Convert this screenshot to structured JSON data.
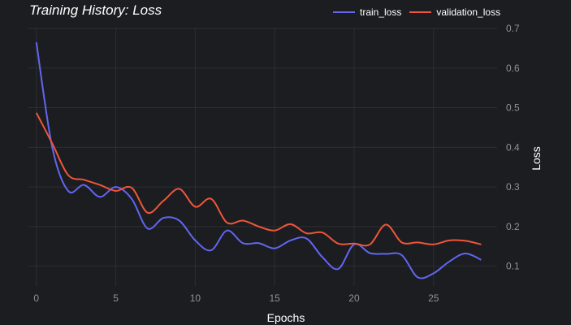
{
  "chart_data": {
    "type": "line",
    "title": "Training History: Loss",
    "xlabel": "Epochs",
    "ylabel": "Loss",
    "xlim": [
      -0.5,
      29
    ],
    "ylim": [
      0.05,
      0.7
    ],
    "xticks": [
      0,
      5,
      10,
      15,
      20,
      25
    ],
    "yticks": [
      0.1,
      0.2,
      0.3,
      0.4,
      0.5,
      0.6,
      0.7
    ],
    "y_axis_side": "right",
    "grid": true,
    "legend_position": "top-right",
    "x": [
      0,
      1,
      2,
      3,
      4,
      5,
      6,
      7,
      8,
      9,
      10,
      11,
      12,
      13,
      14,
      15,
      16,
      17,
      18,
      19,
      20,
      21,
      22,
      23,
      24,
      25,
      26,
      27,
      28
    ],
    "series": [
      {
        "name": "train_loss",
        "color": "#6366f1",
        "values": [
          0.665,
          0.4,
          0.29,
          0.305,
          0.275,
          0.3,
          0.27,
          0.195,
          0.222,
          0.215,
          0.165,
          0.14,
          0.19,
          0.158,
          0.158,
          0.145,
          0.165,
          0.17,
          0.123,
          0.093,
          0.155,
          0.133,
          0.131,
          0.128,
          0.072,
          0.082,
          0.112,
          0.132,
          0.116
        ]
      },
      {
        "name": "validation_loss",
        "color": "#ef553b",
        "values": [
          0.487,
          0.41,
          0.33,
          0.318,
          0.305,
          0.29,
          0.298,
          0.235,
          0.265,
          0.295,
          0.25,
          0.27,
          0.21,
          0.215,
          0.2,
          0.19,
          0.206,
          0.183,
          0.185,
          0.157,
          0.157,
          0.155,
          0.205,
          0.16,
          0.16,
          0.155,
          0.165,
          0.164,
          0.155
        ]
      }
    ]
  }
}
